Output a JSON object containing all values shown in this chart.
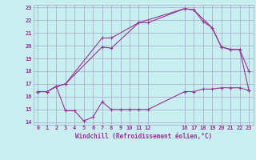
{
  "background_color": "#c8eef0",
  "grid_color": "#a0a8c8",
  "line_color": "#993399",
  "xlabel": "Windchill (Refroidissement éolien,°C)",
  "ylim": [
    14,
    23
  ],
  "xlim": [
    0,
    23
  ],
  "yticks": [
    14,
    15,
    16,
    17,
    18,
    19,
    20,
    21,
    22,
    23
  ],
  "xticks": [
    0,
    1,
    2,
    3,
    4,
    5,
    6,
    7,
    8,
    9,
    10,
    11,
    12,
    16,
    17,
    18,
    19,
    20,
    21,
    22,
    23
  ],
  "line1_x": [
    0,
    1,
    2,
    3,
    7,
    8,
    11,
    12,
    16,
    17,
    18,
    19,
    20,
    21,
    22,
    23
  ],
  "line1_y": [
    16.4,
    16.4,
    16.8,
    17.0,
    19.9,
    19.8,
    21.8,
    21.8,
    22.9,
    22.8,
    21.9,
    21.4,
    19.9,
    19.7,
    19.7,
    18.0
  ],
  "line2_x": [
    0,
    1,
    2,
    3,
    7,
    8,
    11,
    16,
    17,
    19,
    20,
    21,
    22,
    23
  ],
  "line2_y": [
    16.4,
    16.4,
    16.8,
    17.0,
    20.6,
    20.6,
    21.8,
    22.9,
    22.8,
    21.4,
    19.9,
    19.7,
    19.7,
    16.5
  ],
  "line3_x": [
    0,
    1,
    2,
    3,
    4,
    5,
    6,
    7,
    8,
    9,
    10,
    11,
    12,
    16,
    17,
    18,
    19,
    20,
    21,
    22,
    23
  ],
  "line3_y": [
    16.4,
    16.4,
    16.8,
    14.9,
    14.9,
    14.1,
    14.4,
    15.6,
    15.0,
    15.0,
    15.0,
    15.0,
    15.0,
    16.4,
    16.4,
    16.6,
    16.6,
    16.7,
    16.7,
    16.7,
    16.5
  ]
}
